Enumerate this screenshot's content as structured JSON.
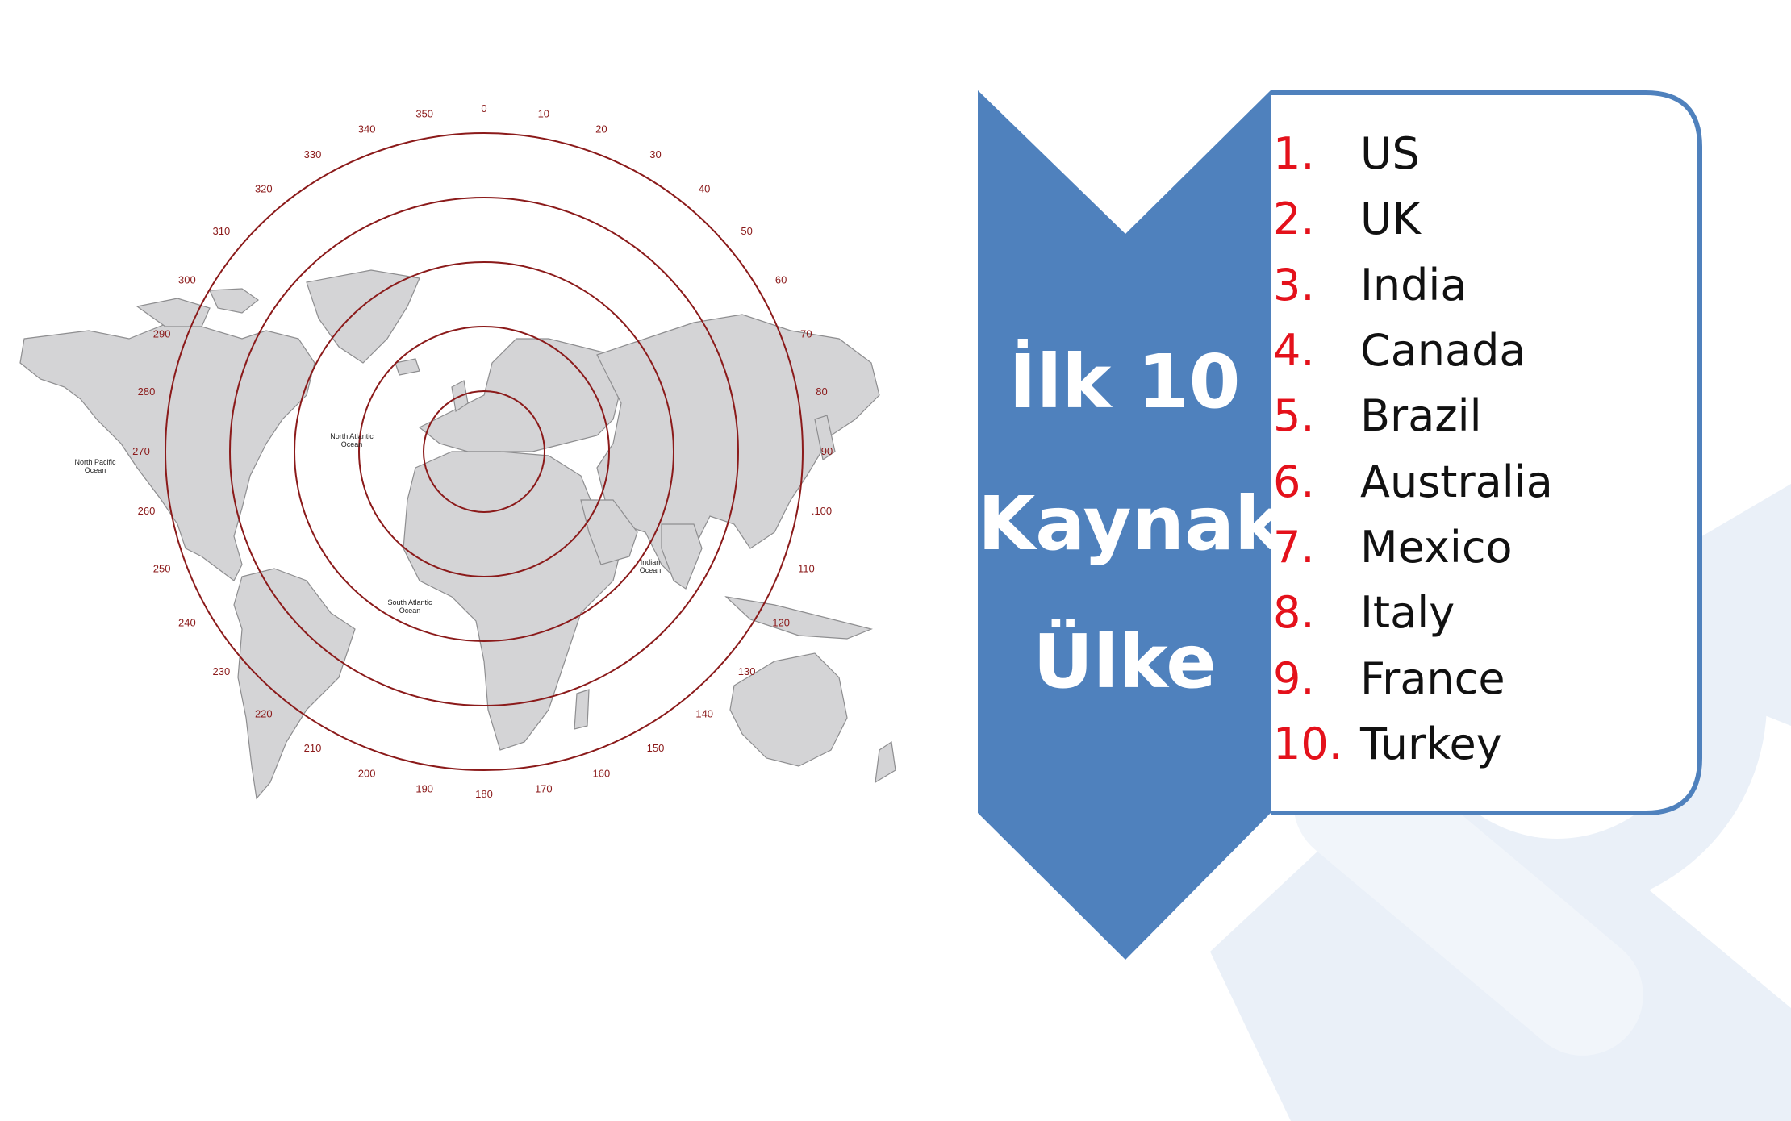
{
  "banner": {
    "line1": "İlk 10",
    "line2": "Kaynak",
    "line3": "Ülke"
  },
  "countries": [
    {
      "rank": "1.",
      "name": "US"
    },
    {
      "rank": "2.",
      "name": "UK"
    },
    {
      "rank": "3.",
      "name": "India"
    },
    {
      "rank": "4.",
      "name": "Canada"
    },
    {
      "rank": "5.",
      "name": "Brazil"
    },
    {
      "rank": "6.",
      "name": "Australia"
    },
    {
      "rank": "7.",
      "name": "Mexico"
    },
    {
      "rank": "8.",
      "name": "Italy"
    },
    {
      "rank": "9.",
      "name": "France"
    },
    {
      "rank": "10.",
      "name": "Turkey"
    }
  ],
  "map": {
    "bearings": [
      "0",
      "10",
      "20",
      "30",
      "40",
      "50",
      "60",
      "70",
      "80",
      "90",
      ".100",
      "110",
      "120",
      "130",
      "140",
      "150",
      "160",
      "170",
      "180",
      "190",
      "200",
      "210",
      "220",
      "230",
      "240",
      "250",
      "260",
      "270",
      "280",
      "290",
      "300",
      "310",
      "320",
      "330",
      "340",
      "350"
    ],
    "oceans": {
      "north_atlantic": [
        "North Atlantic",
        "Ocean"
      ],
      "north_pacific": [
        "North Pacific",
        "Ocean"
      ],
      "south_atlantic": [
        "South Atlantic",
        "Ocean"
      ],
      "indian": [
        "Indian",
        "Ocean"
      ]
    }
  },
  "colors": {
    "banner_blue": "#4f81bd",
    "ring_red": "#8b1a1a",
    "rank_red": "#e4111b",
    "land_gray": "#d4d4d6",
    "watermark": "#eaf0f8"
  }
}
